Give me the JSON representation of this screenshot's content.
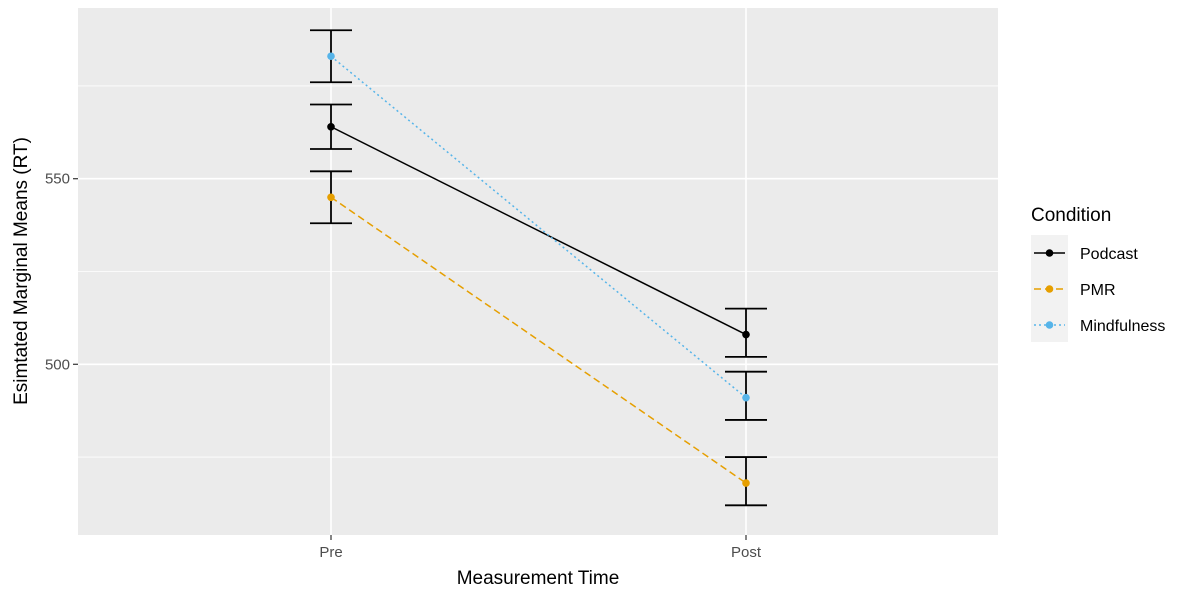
{
  "chart_data": {
    "type": "line",
    "title": "",
    "xlabel": "Measurement Time",
    "ylabel": "Esimtated Marginal Means (RT)",
    "categories": [
      "Pre",
      "Post"
    ],
    "ylim": [
      462,
      592
    ],
    "yticks": [
      500,
      550
    ],
    "grid": true,
    "legend": {
      "title": "Condition",
      "position": "right"
    },
    "series": [
      {
        "name": "Podcast",
        "values": [
          564,
          508
        ],
        "error_low": [
          558,
          502
        ],
        "error_high": [
          570,
          515
        ],
        "color": "#000000",
        "line_style": "solid"
      },
      {
        "name": "PMR",
        "values": [
          545,
          468
        ],
        "error_low": [
          538,
          462
        ],
        "error_high": [
          552,
          475
        ],
        "color": "#E69F00",
        "line_style": "dashed"
      },
      {
        "name": "Mindfulness",
        "values": [
          583,
          491
        ],
        "error_low": [
          576,
          485
        ],
        "error_high": [
          590,
          498
        ],
        "color": "#56B4E9",
        "line_style": "dotted"
      }
    ]
  }
}
